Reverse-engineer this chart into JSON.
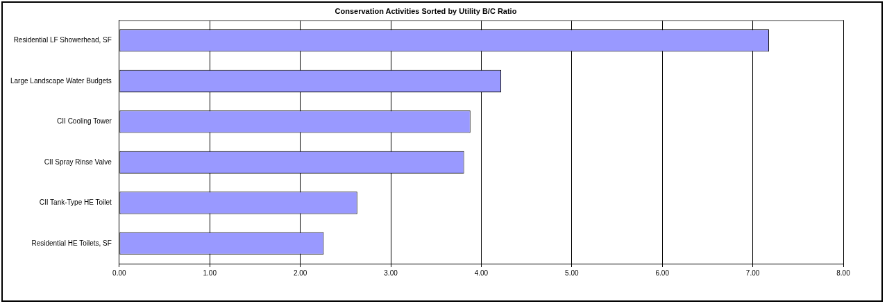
{
  "chart_data": {
    "type": "bar",
    "orientation": "horizontal",
    "title": "Conservation Activities Sorted by Utility B/C Ratio",
    "categories": [
      "Residential LF Showerhead, SF",
      "Large Landscape Water Budgets",
      "CII Cooling Tower",
      "CII Spray Rinse Valve",
      "CII Tank-Type HE Toilet",
      "Residential HE Toilets, SF"
    ],
    "values": [
      7.18,
      4.22,
      3.88,
      3.81,
      2.63,
      2.26
    ],
    "color": "#9999ff",
    "xlim": [
      0,
      8
    ],
    "xticks": [
      {
        "value": 0,
        "label": "0.00"
      },
      {
        "value": 1,
        "label": "1.00"
      },
      {
        "value": 2,
        "label": "2.00"
      },
      {
        "value": 3,
        "label": "3.00"
      },
      {
        "value": 4,
        "label": "4.00"
      },
      {
        "value": 5,
        "label": "5.00"
      },
      {
        "value": 6,
        "label": "6.00"
      },
      {
        "value": 7,
        "label": "7.00"
      },
      {
        "value": 8,
        "label": "8.00"
      }
    ],
    "grid": "x",
    "legend": false
  }
}
